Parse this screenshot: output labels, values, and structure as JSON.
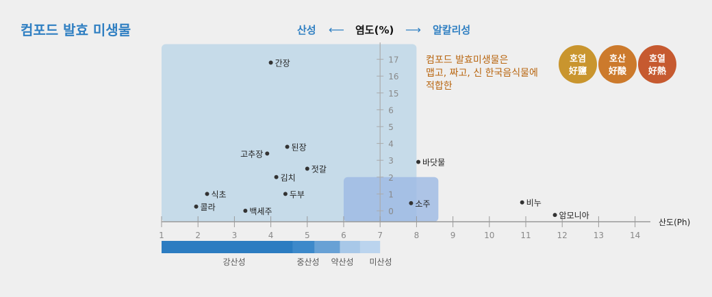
{
  "title": "컴포드 발효 미생물",
  "header": {
    "acid": "산성",
    "center": "염도(%)",
    "alkali": "알칼리성",
    "colors": {
      "acid": "#2f7fc2",
      "center": "#111111"
    }
  },
  "note_lines": [
    "컴포드 발효미생물은",
    "맵고, 짜고, 신 한국음식물에",
    "적합한"
  ],
  "badges": [
    {
      "line1": "호염",
      "line2": "好鹽",
      "color": "#c9952e"
    },
    {
      "line1": "호산",
      "line2": "好酸",
      "color": "#cc7a2c"
    },
    {
      "line1": "호열",
      "line2": "好熱",
      "color": "#c65a30"
    }
  ],
  "chart_data": {
    "type": "scatter",
    "xlabel": "산도(Ph)",
    "ylabel": "염도(%)",
    "xlim": [
      1,
      14
    ],
    "x_ticks": [
      "1",
      "2",
      "3",
      "4",
      "5",
      "6",
      "7",
      "8",
      "9",
      "10",
      "11",
      "12",
      "13",
      "14"
    ],
    "y_ticks": [
      "0",
      "1",
      "2",
      "3",
      "4",
      "5",
      "6",
      "15",
      "16",
      "17"
    ],
    "y_axis_note": "axis broken between 6 and 15",
    "points": [
      {
        "label": "간장",
        "x": 4.0,
        "y": 16.8
      },
      {
        "label": "된장",
        "x": 4.45,
        "y": 3.8
      },
      {
        "label": "고추장",
        "x": 3.9,
        "y": 3.4
      },
      {
        "label": "젓갈",
        "x": 5.0,
        "y": 2.5
      },
      {
        "label": "김치",
        "x": 4.15,
        "y": 2.0
      },
      {
        "label": "식초",
        "x": 2.25,
        "y": 1.0
      },
      {
        "label": "두부",
        "x": 4.4,
        "y": 1.0
      },
      {
        "label": "콜라",
        "x": 1.95,
        "y": 0.25
      },
      {
        "label": "백세주",
        "x": 3.3,
        "y": 0.0
      },
      {
        "label": "소주",
        "x": 7.85,
        "y": 0.45
      },
      {
        "label": "바닷물",
        "x": 8.05,
        "y": 2.9
      },
      {
        "label": "비누",
        "x": 10.9,
        "y": 0.5
      },
      {
        "label": "암모니아",
        "x": 11.8,
        "y": -0.25
      }
    ],
    "regions": [
      {
        "x": [
          1,
          8.0
        ],
        "y": [
          -0.6,
          17.9
        ],
        "color": "#bcd6e7"
      },
      {
        "x": [
          6.0,
          8.6
        ],
        "y": [
          -0.6,
          2.0
        ],
        "color": "#9cb9e3"
      }
    ],
    "acidity_scale": [
      {
        "label": "강산성",
        "from": 1,
        "to": 4.6,
        "color": "#2b7cc1"
      },
      {
        "label": "중산성",
        "from": 4.6,
        "to": 5.2,
        "color": "#3d89ca"
      },
      {
        "label": "",
        "from": 5.2,
        "to": 5.9,
        "color": "#68a1d5"
      },
      {
        "label": "약산성",
        "from": 5.9,
        "to": 6.45,
        "color": "#a8c8e8"
      },
      {
        "label": "미산성",
        "from": 6.45,
        "to": 7.0,
        "color": "#bbd4ee"
      }
    ]
  }
}
